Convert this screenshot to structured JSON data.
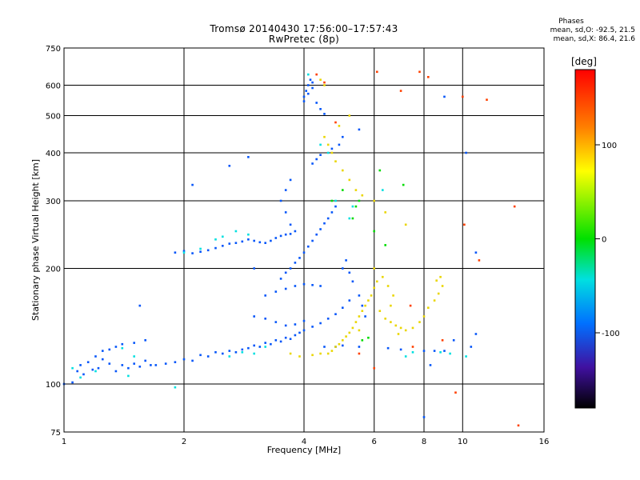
{
  "figure": {
    "title": "Tromsø 20140430 17:56:00–17:57:43",
    "subtitle": "RwPretec (8p)",
    "phases": {
      "header": "Phases",
      "line_o": "mean, sd,O: -92.5, 21.5",
      "line_x": "mean, sd,X:  86.4, 21.6"
    }
  },
  "chart_data": {
    "type": "scatter",
    "title": "Tromsø 20140430 17:56:00–17:57:43",
    "subtitle": "RwPretec (8p)",
    "xlabel": "Frequency [MHz]",
    "ylabel": "Stationary phase Virtual Height [km]",
    "x_scale": "log",
    "y_scale": "log",
    "xlim": [
      1,
      16
    ],
    "ylim": [
      75,
      750
    ],
    "x_ticks": [
      1,
      2,
      4,
      6,
      8,
      10,
      16
    ],
    "x_tick_labels": [
      "1",
      "2",
      "4",
      "6",
      "8",
      "10",
      "16"
    ],
    "y_ticks": [
      75,
      100,
      200,
      300,
      400,
      500,
      600,
      750
    ],
    "y_tick_labels": [
      "75",
      "100",
      "200",
      "300",
      "400",
      "500",
      "600",
      "750"
    ],
    "grid": true,
    "colorbar": {
      "label": "[deg]",
      "range": [
        -180,
        180
      ],
      "ticks": [
        100,
        0,
        -100
      ],
      "tick_labels": [
        "100",
        "0",
        "-100"
      ]
    },
    "series": [
      {
        "mode": "O (blue, ~-92 deg)",
        "phase_mean_deg": -92.5,
        "points": [
          [
            1.0,
            100
          ],
          [
            1.05,
            101
          ],
          [
            1.08,
            108
          ],
          [
            1.1,
            112
          ],
          [
            1.12,
            106
          ],
          [
            1.15,
            114
          ],
          [
            1.18,
            109
          ],
          [
            1.2,
            118
          ],
          [
            1.22,
            110
          ],
          [
            1.25,
            116
          ],
          [
            1.3,
            113
          ],
          [
            1.35,
            108
          ],
          [
            1.4,
            112
          ],
          [
            1.45,
            110
          ],
          [
            1.5,
            113
          ],
          [
            1.55,
            111
          ],
          [
            1.6,
            115
          ],
          [
            1.65,
            112
          ],
          [
            1.7,
            112
          ],
          [
            1.8,
            113
          ],
          [
            1.9,
            114
          ],
          [
            2.0,
            116
          ],
          [
            2.1,
            115
          ],
          [
            2.2,
            119
          ],
          [
            2.3,
            118
          ],
          [
            2.4,
            121
          ],
          [
            2.5,
            120
          ],
          [
            2.6,
            122
          ],
          [
            2.7,
            121
          ],
          [
            2.8,
            123
          ],
          [
            2.9,
            124
          ],
          [
            3.0,
            126
          ],
          [
            3.1,
            125
          ],
          [
            3.2,
            128
          ],
          [
            3.3,
            127
          ],
          [
            3.4,
            130
          ],
          [
            3.5,
            129
          ],
          [
            3.6,
            132
          ],
          [
            3.7,
            131
          ],
          [
            3.8,
            134
          ],
          [
            3.9,
            136
          ],
          [
            4.0,
            138
          ],
          [
            4.2,
            141
          ],
          [
            4.4,
            144
          ],
          [
            4.6,
            148
          ],
          [
            4.8,
            152
          ],
          [
            5.0,
            158
          ],
          [
            5.2,
            165
          ],
          [
            1.3,
            123
          ],
          [
            1.4,
            127
          ],
          [
            1.5,
            128
          ],
          [
            1.6,
            130
          ],
          [
            1.25,
            122
          ],
          [
            1.35,
            125
          ],
          [
            1.9,
            220
          ],
          [
            2.0,
            222
          ],
          [
            2.1,
            219
          ],
          [
            2.2,
            221
          ],
          [
            2.3,
            223
          ],
          [
            2.4,
            226
          ],
          [
            2.5,
            229
          ],
          [
            2.6,
            232
          ],
          [
            2.7,
            233
          ],
          [
            2.8,
            235
          ],
          [
            2.9,
            238
          ],
          [
            3.0,
            236
          ],
          [
            3.1,
            234
          ],
          [
            3.2,
            233
          ],
          [
            3.3,
            236
          ],
          [
            3.4,
            240
          ],
          [
            3.5,
            243
          ],
          [
            3.6,
            245
          ],
          [
            3.7,
            246
          ],
          [
            3.8,
            250
          ],
          [
            3.2,
            170
          ],
          [
            3.4,
            174
          ],
          [
            3.6,
            177
          ],
          [
            3.8,
            180
          ],
          [
            4.0,
            182
          ],
          [
            4.2,
            181
          ],
          [
            4.4,
            180
          ],
          [
            3.0,
            150
          ],
          [
            3.2,
            148
          ],
          [
            3.4,
            145
          ],
          [
            3.6,
            142
          ],
          [
            3.8,
            143
          ],
          [
            4.0,
            146
          ],
          [
            3.5,
            188
          ],
          [
            3.6,
            195
          ],
          [
            3.7,
            200
          ],
          [
            3.8,
            207
          ],
          [
            3.9,
            213
          ],
          [
            4.0,
            220
          ],
          [
            4.1,
            228
          ],
          [
            4.2,
            236
          ],
          [
            4.3,
            245
          ],
          [
            4.4,
            253
          ],
          [
            4.5,
            262
          ],
          [
            4.6,
            270
          ],
          [
            4.7,
            280
          ],
          [
            4.8,
            290
          ],
          [
            3.7,
            260
          ],
          [
            3.6,
            280
          ],
          [
            3.5,
            300
          ],
          [
            3.6,
            320
          ],
          [
            3.7,
            340
          ],
          [
            4.0,
            560
          ],
          [
            4.05,
            580
          ],
          [
            4.1,
            600
          ],
          [
            4.15,
            620
          ],
          [
            4.2,
            610
          ],
          [
            4.0,
            545
          ],
          [
            4.1,
            570
          ],
          [
            4.2,
            590
          ],
          [
            4.3,
            540
          ],
          [
            4.4,
            520
          ],
          [
            4.5,
            505
          ],
          [
            4.3,
            385
          ],
          [
            4.4,
            395
          ],
          [
            4.2,
            375
          ],
          [
            5.0,
            200
          ],
          [
            5.1,
            210
          ],
          [
            5.2,
            195
          ],
          [
            5.3,
            185
          ],
          [
            5.5,
            170
          ],
          [
            5.6,
            160
          ],
          [
            5.7,
            150
          ],
          [
            4.5,
            125
          ],
          [
            4.8,
            125
          ],
          [
            5.0,
            126
          ],
          [
            5.5,
            125
          ],
          [
            6.5,
            124
          ],
          [
            7.0,
            123
          ],
          [
            8.0,
            122
          ],
          [
            8.5,
            122
          ],
          [
            9.0,
            122
          ],
          [
            8.3,
            112
          ],
          [
            9.5,
            130
          ],
          [
            10.5,
            125
          ],
          [
            10.8,
            135
          ],
          [
            8.0,
            82
          ],
          [
            9.0,
            560
          ],
          [
            1.55,
            160
          ],
          [
            2.1,
            330
          ],
          [
            2.6,
            370
          ],
          [
            2.9,
            390
          ],
          [
            10.2,
            400
          ],
          [
            10.8,
            220
          ],
          [
            3.0,
            200
          ],
          [
            4.9,
            420
          ],
          [
            4.7,
            410
          ],
          [
            5.5,
            460
          ],
          [
            5.0,
            440
          ]
        ]
      },
      {
        "mode": "X (yellow, ~86 deg)",
        "phase_mean_deg": 86.4,
        "points": [
          [
            4.6,
            120
          ],
          [
            4.7,
            122
          ],
          [
            4.8,
            125
          ],
          [
            4.9,
            127
          ],
          [
            5.0,
            130
          ],
          [
            5.1,
            133
          ],
          [
            5.2,
            136
          ],
          [
            5.3,
            140
          ],
          [
            5.4,
            145
          ],
          [
            5.5,
            150
          ],
          [
            5.6,
            155
          ],
          [
            5.7,
            160
          ],
          [
            5.8,
            165
          ],
          [
            5.9,
            170
          ],
          [
            6.0,
            178
          ],
          [
            6.2,
            155
          ],
          [
            6.4,
            148
          ],
          [
            6.6,
            145
          ],
          [
            6.8,
            142
          ],
          [
            7.0,
            140
          ],
          [
            7.2,
            138
          ],
          [
            7.5,
            140
          ],
          [
            7.8,
            145
          ],
          [
            8.0,
            150
          ],
          [
            8.2,
            158
          ],
          [
            8.5,
            165
          ],
          [
            8.7,
            172
          ],
          [
            8.9,
            180
          ],
          [
            8.6,
            186
          ],
          [
            8.8,
            190
          ],
          [
            6.0,
            200
          ],
          [
            6.3,
            190
          ],
          [
            6.5,
            180
          ],
          [
            6.7,
            170
          ],
          [
            6.1,
            185
          ],
          [
            6.6,
            160
          ],
          [
            4.5,
            440
          ],
          [
            4.6,
            420
          ],
          [
            4.7,
            400
          ],
          [
            4.8,
            380
          ],
          [
            5.0,
            360
          ],
          [
            5.2,
            340
          ],
          [
            5.4,
            320
          ],
          [
            5.6,
            310
          ],
          [
            4.4,
            620
          ],
          [
            4.5,
            600
          ],
          [
            4.9,
            470
          ],
          [
            5.2,
            500
          ],
          [
            6.0,
            300
          ],
          [
            6.4,
            280
          ],
          [
            7.2,
            260
          ],
          [
            3.7,
            120
          ],
          [
            3.9,
            118
          ],
          [
            4.2,
            119
          ],
          [
            4.4,
            120
          ],
          [
            5.5,
            138
          ],
          [
            6.9,
            135
          ]
        ]
      },
      {
        "mode": "cyan (~-50 deg)",
        "phase_mean_deg": -50,
        "points": [
          [
            2.0,
            220
          ],
          [
            2.2,
            225
          ],
          [
            2.4,
            238
          ],
          [
            2.5,
            242
          ],
          [
            2.7,
            250
          ],
          [
            2.9,
            245
          ],
          [
            3.0,
            120
          ],
          [
            3.2,
            125
          ],
          [
            2.6,
            118
          ],
          [
            2.8,
            121
          ],
          [
            4.4,
            420
          ],
          [
            4.6,
            400
          ],
          [
            4.8,
            300
          ],
          [
            5.2,
            270
          ],
          [
            5.3,
            290
          ],
          [
            6.3,
            320
          ],
          [
            1.05,
            110
          ],
          [
            1.1,
            104
          ],
          [
            1.2,
            108
          ],
          [
            1.4,
            124
          ],
          [
            1.5,
            118
          ],
          [
            1.45,
            105
          ],
          [
            1.9,
            98
          ],
          [
            4.1,
            640
          ],
          [
            9.3,
            120
          ],
          [
            10.2,
            118
          ],
          [
            7.2,
            118
          ],
          [
            7.5,
            121
          ],
          [
            8.8,
            121
          ]
        ]
      },
      {
        "mode": "green (~0 deg)",
        "phase_mean_deg": 0,
        "points": [
          [
            5.3,
            270
          ],
          [
            5.4,
            290
          ],
          [
            5.5,
            300
          ],
          [
            6.0,
            250
          ],
          [
            6.4,
            230
          ],
          [
            6.2,
            360
          ],
          [
            7.1,
            330
          ],
          [
            5.6,
            130
          ],
          [
            5.8,
            132
          ],
          [
            4.7,
            300
          ],
          [
            5.0,
            320
          ]
        ]
      },
      {
        "mode": "orange/red (~150 deg)",
        "phase_mean_deg": 150,
        "points": [
          [
            4.3,
            640
          ],
          [
            4.5,
            610
          ],
          [
            5.5,
            120
          ],
          [
            6.0,
            110
          ],
          [
            7.5,
            125
          ],
          [
            7.4,
            160
          ],
          [
            7.8,
            650
          ],
          [
            8.2,
            630
          ],
          [
            8.9,
            130
          ],
          [
            10.1,
            260
          ],
          [
            11.0,
            210
          ],
          [
            13.5,
            290
          ],
          [
            13.8,
            78
          ],
          [
            9.6,
            95
          ],
          [
            7.0,
            580
          ],
          [
            6.1,
            650
          ],
          [
            4.8,
            480
          ],
          [
            10.0,
            560
          ],
          [
            11.5,
            550
          ]
        ]
      }
    ]
  }
}
